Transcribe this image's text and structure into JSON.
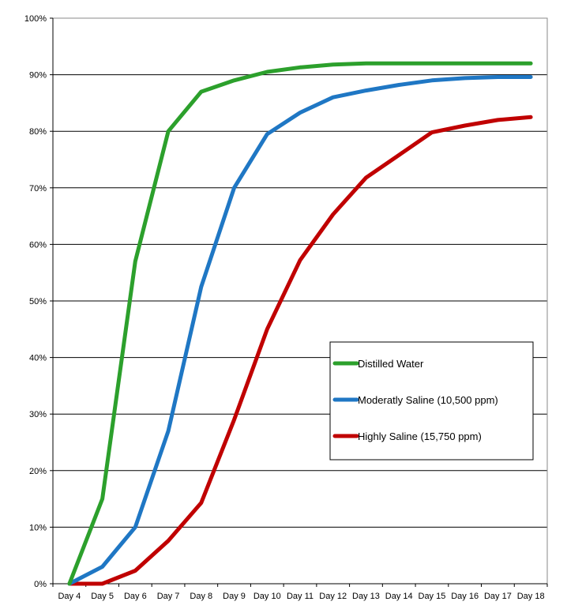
{
  "chart_data": {
    "type": "line",
    "title": "",
    "xlabel": "",
    "ylabel": "",
    "categories": [
      "Day 4",
      "Day 5",
      "Day 6",
      "Day 7",
      "Day 8",
      "Day 9",
      "Day 10",
      "Day 11",
      "Day 12",
      "Day 13",
      "Day 14",
      "Day 15",
      "Day 16",
      "Day 17",
      "Day 18"
    ],
    "yticks": [
      "0%",
      "10%",
      "20%",
      "30%",
      "40%",
      "50%",
      "60%",
      "70%",
      "80%",
      "90%",
      "100%"
    ],
    "ylim": [
      0,
      100
    ],
    "grid": true,
    "legend_position": "right-center",
    "series": [
      {
        "name": "Distilled Water",
        "color": "#2ca02c",
        "values": [
          0,
          15,
          57,
          80,
          87,
          89,
          90.5,
          91.3,
          91.8,
          92,
          92,
          92,
          92,
          92,
          92
        ]
      },
      {
        "name": "Moderatly Saline (10,500 ppm)",
        "color": "#1f77c4",
        "values": [
          0,
          3,
          10,
          27,
          52.5,
          70,
          79.5,
          83.3,
          86,
          87.2,
          88.2,
          89,
          89.4,
          89.6,
          89.6
        ]
      },
      {
        "name": "Highly Saline (15,750 ppm)",
        "color": "#c00000",
        "values": [
          0,
          0,
          2.3,
          7.6,
          14.3,
          29,
          45,
          57.2,
          65.3,
          71.8,
          75.8,
          79.8,
          81,
          82,
          82.5
        ]
      }
    ]
  }
}
